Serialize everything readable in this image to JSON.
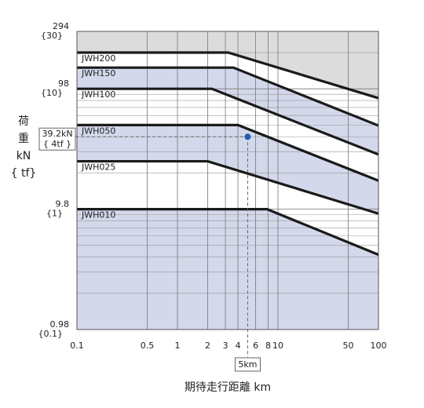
{
  "chart_data": {
    "type": "line",
    "xlabel": "期待走行距離 km",
    "ylabel": [
      "荷",
      "重",
      "kN",
      "{ tf}"
    ],
    "log_x": true,
    "log_y": true,
    "grid": true,
    "xlim": [
      0.1,
      100
    ],
    "ylim": [
      0.98,
      294
    ],
    "xticks": [
      0.1,
      0.5,
      1,
      2,
      3,
      4,
      6,
      8,
      10,
      50,
      100
    ],
    "yticks": [
      0.98,
      9.8,
      98,
      294
    ],
    "ytick_sublabels": [
      "{0.1}",
      "{1}",
      "{10}",
      "{30}"
    ],
    "ygrid": [
      1.96,
      2.94,
      3.92,
      4.9,
      5.88,
      6.86,
      7.84,
      8.82,
      19.6,
      29.4,
      39.2,
      49,
      58.8,
      68.6,
      78.4,
      88.2,
      196
    ],
    "background": "#dcdcdc",
    "series": [
      {
        "name": "JWH200",
        "color": "#1a1a1a",
        "fill": "#ffffff",
        "x": [
          0.1,
          3.2,
          100
        ],
        "values": [
          196,
          196,
          82
        ]
      },
      {
        "name": "JWH150",
        "color": "#1a1a1a",
        "fill": "#d3d8ea",
        "x": [
          0.1,
          3.6,
          100
        ],
        "values": [
          147,
          147,
          48.5
        ]
      },
      {
        "name": "JWH100",
        "color": "#1a1a1a",
        "fill": "#ffffff",
        "x": [
          0.1,
          2.2,
          100
        ],
        "values": [
          98,
          98,
          27.9
        ]
      },
      {
        "name": "JWH050",
        "color": "#1a1a1a",
        "fill": "#d3d8ea",
        "x": [
          0.1,
          4,
          100
        ],
        "values": [
          49,
          49,
          16.9
        ]
      },
      {
        "name": "JWH025",
        "color": "#1a1a1a",
        "fill": "#ffffff",
        "x": [
          0.1,
          2,
          100
        ],
        "values": [
          24.5,
          24.5,
          9
        ]
      },
      {
        "name": "JWH010",
        "color": "#1a1a1a",
        "fill": "#d3d8ea",
        "x": [
          0.1,
          7.8,
          100
        ],
        "values": [
          9.8,
          9.8,
          4.1
        ]
      }
    ],
    "annotation": {
      "x": 5,
      "y": 39.2,
      "color": "#1f5fb0",
      "label": "39.2kN",
      "label2": "{ 4tf }",
      "x_label": "5km"
    }
  }
}
